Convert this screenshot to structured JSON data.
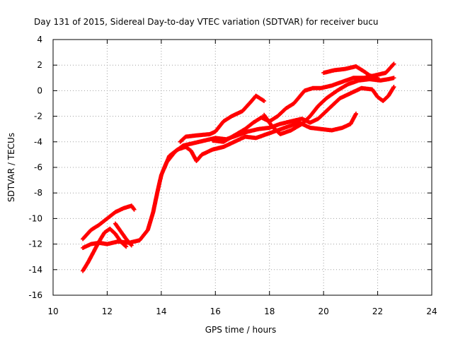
{
  "chart_data": {
    "type": "scatter",
    "title": "Day 131 of 2015, Sidereal Day-to-day VTEC variation (SDTVAR) for receiver bucu",
    "xlabel": "GPS time / hours",
    "ylabel": "SDTVAR / TECUs",
    "xlim": [
      10,
      24
    ],
    "ylim": [
      -16,
      4
    ],
    "xticks": [
      10,
      12,
      14,
      16,
      18,
      20,
      22,
      24
    ],
    "yticks": [
      -16,
      -14,
      -12,
      -10,
      -8,
      -6,
      -4,
      -2,
      0,
      2,
      4
    ],
    "grid": true,
    "legend": "none",
    "marker": "plus",
    "color": "#ff0000",
    "series": [
      {
        "name": "track-1",
        "points": [
          [
            11.1,
            -12.3
          ],
          [
            11.4,
            -12.0
          ],
          [
            11.7,
            -11.9
          ],
          [
            12.0,
            -12.0
          ],
          [
            12.4,
            -11.8
          ],
          [
            12.8,
            -11.9
          ],
          [
            13.2,
            -11.7
          ],
          [
            13.5,
            -10.9
          ],
          [
            13.7,
            -9.5
          ],
          [
            13.85,
            -8.0
          ],
          [
            14.0,
            -6.6
          ],
          [
            14.2,
            -5.6
          ],
          [
            14.5,
            -4.8
          ],
          [
            14.8,
            -4.3
          ],
          [
            15.2,
            -4.1
          ],
          [
            15.6,
            -3.9
          ],
          [
            16.0,
            -3.7
          ],
          [
            16.4,
            -3.8
          ],
          [
            16.8,
            -3.5
          ],
          [
            17.2,
            -3.2
          ],
          [
            17.6,
            -3.0
          ],
          [
            18.0,
            -2.9
          ],
          [
            18.4,
            -2.6
          ],
          [
            18.8,
            -2.4
          ],
          [
            19.2,
            -2.2
          ],
          [
            19.5,
            -2.5
          ],
          [
            19.8,
            -2.2
          ],
          [
            20.2,
            -1.4
          ],
          [
            20.6,
            -0.6
          ],
          [
            21.0,
            -0.2
          ],
          [
            21.4,
            0.2
          ],
          [
            21.8,
            0.1
          ],
          [
            22.0,
            -0.5
          ],
          [
            22.2,
            -0.8
          ],
          [
            22.4,
            -0.4
          ],
          [
            22.6,
            0.3
          ]
        ]
      },
      {
        "name": "track-2",
        "points": [
          [
            11.1,
            -11.6
          ],
          [
            11.4,
            -10.9
          ],
          [
            11.7,
            -10.5
          ],
          [
            12.0,
            -10.0
          ],
          [
            12.3,
            -9.5
          ],
          [
            12.6,
            -9.2
          ],
          [
            12.9,
            -9.0
          ],
          [
            13.0,
            -9.3
          ]
        ]
      },
      {
        "name": "track-3",
        "points": [
          [
            11.1,
            -14.1
          ],
          [
            11.3,
            -13.4
          ],
          [
            11.5,
            -12.6
          ],
          [
            11.7,
            -11.8
          ],
          [
            11.9,
            -11.1
          ],
          [
            12.1,
            -10.8
          ],
          [
            12.3,
            -11.2
          ],
          [
            12.5,
            -11.8
          ],
          [
            12.7,
            -12.2
          ]
        ]
      },
      {
        "name": "track-4",
        "points": [
          [
            12.3,
            -10.4
          ],
          [
            12.5,
            -11.0
          ],
          [
            12.7,
            -11.6
          ],
          [
            12.9,
            -12.1
          ]
        ]
      },
      {
        "name": "track-5",
        "points": [
          [
            14.1,
            -6.1
          ],
          [
            14.3,
            -5.1
          ],
          [
            14.6,
            -4.6
          ],
          [
            14.9,
            -4.4
          ],
          [
            15.1,
            -4.7
          ],
          [
            15.3,
            -5.5
          ],
          [
            15.5,
            -5.0
          ],
          [
            15.9,
            -4.6
          ],
          [
            16.3,
            -4.4
          ],
          [
            16.7,
            -4.0
          ],
          [
            17.1,
            -3.6
          ],
          [
            17.5,
            -3.7
          ],
          [
            17.9,
            -3.4
          ],
          [
            18.3,
            -3.1
          ],
          [
            18.7,
            -2.8
          ],
          [
            19.1,
            -2.5
          ],
          [
            19.5,
            -2.9
          ],
          [
            19.9,
            -3.0
          ],
          [
            20.3,
            -3.1
          ],
          [
            20.7,
            -2.9
          ],
          [
            21.0,
            -2.6
          ],
          [
            21.2,
            -1.8
          ]
        ]
      },
      {
        "name": "track-6",
        "points": [
          [
            14.7,
            -4.0
          ],
          [
            14.9,
            -3.6
          ],
          [
            15.3,
            -3.5
          ],
          [
            15.8,
            -3.4
          ],
          [
            16.0,
            -3.2
          ],
          [
            16.3,
            -2.4
          ],
          [
            16.6,
            -2.0
          ],
          [
            17.0,
            -1.6
          ],
          [
            17.3,
            -0.9
          ],
          [
            17.5,
            -0.4
          ],
          [
            17.8,
            -0.8
          ]
        ]
      },
      {
        "name": "track-7",
        "points": [
          [
            15.9,
            -3.9
          ],
          [
            16.3,
            -4.0
          ],
          [
            16.7,
            -3.5
          ],
          [
            17.1,
            -3.0
          ],
          [
            17.4,
            -2.5
          ],
          [
            17.7,
            -2.1
          ],
          [
            18.0,
            -2.4
          ],
          [
            18.3,
            -2.0
          ],
          [
            18.6,
            -1.4
          ],
          [
            18.9,
            -1.0
          ],
          [
            19.1,
            -0.5
          ],
          [
            19.3,
            0.0
          ],
          [
            19.6,
            0.2
          ],
          [
            19.9,
            0.2
          ],
          [
            20.3,
            0.4
          ],
          [
            20.7,
            0.7
          ],
          [
            21.1,
            1.0
          ],
          [
            21.5,
            1.0
          ],
          [
            21.9,
            1.2
          ],
          [
            22.3,
            1.4
          ],
          [
            22.6,
            2.1
          ]
        ]
      },
      {
        "name": "track-8",
        "points": [
          [
            17.8,
            -1.9
          ],
          [
            18.1,
            -2.8
          ],
          [
            18.4,
            -3.4
          ],
          [
            18.8,
            -3.1
          ],
          [
            19.2,
            -2.6
          ],
          [
            19.5,
            -2.0
          ],
          [
            19.8,
            -1.2
          ],
          [
            20.1,
            -0.6
          ],
          [
            20.5,
            0.0
          ],
          [
            20.9,
            0.5
          ],
          [
            21.3,
            0.8
          ],
          [
            21.7,
            0.9
          ],
          [
            22.1,
            0.8
          ],
          [
            22.4,
            0.9
          ],
          [
            22.6,
            1.0
          ]
        ]
      },
      {
        "name": "track-9",
        "points": [
          [
            20.0,
            1.4
          ],
          [
            20.4,
            1.6
          ],
          [
            20.8,
            1.7
          ],
          [
            21.2,
            1.9
          ],
          [
            21.5,
            1.5
          ],
          [
            21.7,
            1.2
          ],
          [
            22.0,
            1.0
          ]
        ]
      }
    ]
  }
}
